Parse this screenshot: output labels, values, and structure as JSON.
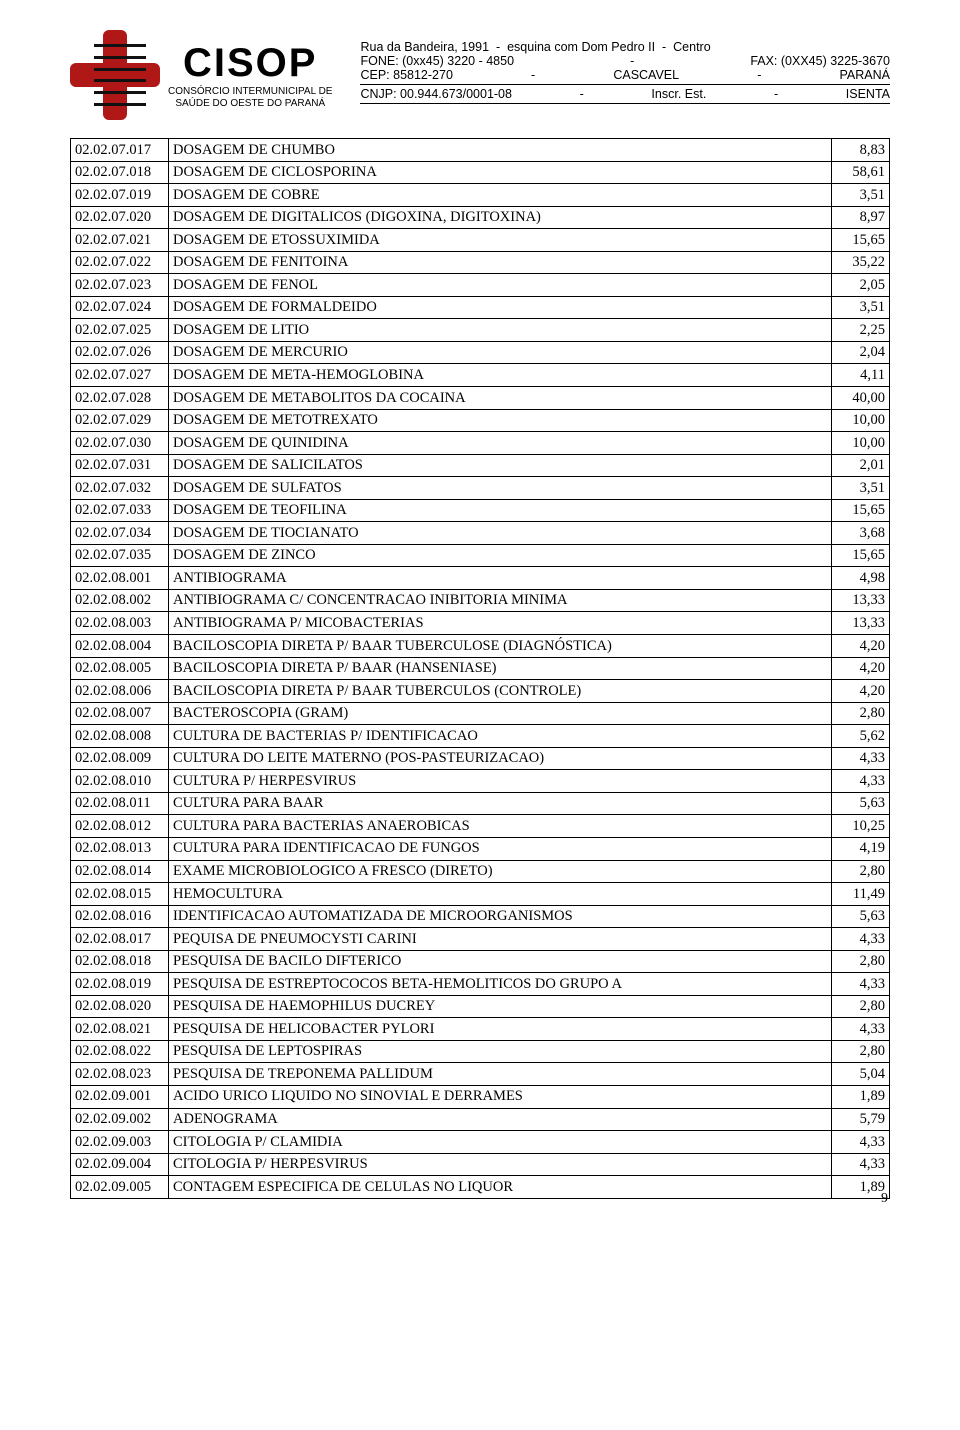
{
  "letterhead": {
    "brand_name": "CISOP",
    "brand_sub1": "CONSÓRCIO INTERMUNICIPAL DE",
    "brand_sub2": "SAÚDE DO OESTE DO PARANÁ",
    "addr1_left": "Rua da Bandeira, 1991  -  esquina com Dom Pedro II  -  Centro",
    "addr2_left": "FONE: (0xx45) 3220 - 4850",
    "addr2_right": "FAX: (0XX45) 3225-3670",
    "addr3_left": "CEP: 85812-270",
    "addr3_mid": "CASCAVEL",
    "addr3_right": "PARANÁ",
    "addr4_left": "CNJP: 00.944.673/0001-08",
    "addr4_mid": "Inscr. Est.",
    "addr4_right": "ISENTA"
  },
  "page_number": "9",
  "rows": [
    {
      "c": "02.02.07.017",
      "d": "DOSAGEM DE CHUMBO",
      "v": "8,83"
    },
    {
      "c": "02.02.07.018",
      "d": "DOSAGEM DE CICLOSPORINA",
      "v": "58,61"
    },
    {
      "c": "02.02.07.019",
      "d": "DOSAGEM DE COBRE",
      "v": "3,51"
    },
    {
      "c": "02.02.07.020",
      "d": "DOSAGEM DE DIGITALICOS (DIGOXINA, DIGITOXINA)",
      "v": "8,97"
    },
    {
      "c": "02.02.07.021",
      "d": "DOSAGEM DE ETOSSUXIMIDA",
      "v": "15,65"
    },
    {
      "c": "02.02.07.022",
      "d": "DOSAGEM DE FENITOINA",
      "v": "35,22"
    },
    {
      "c": "02.02.07.023",
      "d": "DOSAGEM DE FENOL",
      "v": "2,05"
    },
    {
      "c": "02.02.07.024",
      "d": "DOSAGEM DE FORMALDEIDO",
      "v": "3,51"
    },
    {
      "c": "02.02.07.025",
      "d": "DOSAGEM DE LITIO",
      "v": "2,25"
    },
    {
      "c": "02.02.07.026",
      "d": "DOSAGEM DE MERCURIO",
      "v": "2,04"
    },
    {
      "c": "02.02.07.027",
      "d": "DOSAGEM DE META-HEMOGLOBINA",
      "v": "4,11"
    },
    {
      "c": "02.02.07.028",
      "d": "DOSAGEM DE METABOLITOS DA COCAINA",
      "v": "40,00"
    },
    {
      "c": "02.02.07.029",
      "d": "DOSAGEM DE METOTREXATO",
      "v": "10,00"
    },
    {
      "c": "02.02.07.030",
      "d": "DOSAGEM DE QUINIDINA",
      "v": "10,00"
    },
    {
      "c": "02.02.07.031",
      "d": "DOSAGEM DE SALICILATOS",
      "v": "2,01"
    },
    {
      "c": "02.02.07.032",
      "d": "DOSAGEM DE SULFATOS",
      "v": "3,51"
    },
    {
      "c": "02.02.07.033",
      "d": "DOSAGEM DE TEOFILINA",
      "v": "15,65"
    },
    {
      "c": "02.02.07.034",
      "d": "DOSAGEM DE TIOCIANATO",
      "v": "3,68"
    },
    {
      "c": "02.02.07.035",
      "d": "DOSAGEM DE ZINCO",
      "v": "15,65"
    },
    {
      "c": "02.02.08.001",
      "d": "ANTIBIOGRAMA",
      "v": "4,98"
    },
    {
      "c": "02.02.08.002",
      "d": "ANTIBIOGRAMA C/ CONCENTRACAO INIBITORIA MINIMA",
      "v": "13,33"
    },
    {
      "c": "02.02.08.003",
      "d": "ANTIBIOGRAMA P/ MICOBACTERIAS",
      "v": "13,33"
    },
    {
      "c": "02.02.08.004",
      "d": "BACILOSCOPIA DIRETA P/ BAAR TUBERCULOSE (DIAGNÓSTICA)",
      "v": "4,20"
    },
    {
      "c": "02.02.08.005",
      "d": "BACILOSCOPIA DIRETA P/ BAAR (HANSENIASE)",
      "v": "4,20"
    },
    {
      "c": "02.02.08.006",
      "d": "BACILOSCOPIA DIRETA P/ BAAR TUBERCULOS (CONTROLE)",
      "v": "4,20"
    },
    {
      "c": "02.02.08.007",
      "d": "BACTEROSCOPIA (GRAM)",
      "v": "2,80"
    },
    {
      "c": "02.02.08.008",
      "d": "CULTURA DE BACTERIAS P/ IDENTIFICACAO",
      "v": "5,62"
    },
    {
      "c": "02.02.08.009",
      "d": "CULTURA DO LEITE MATERNO (POS-PASTEURIZACAO)",
      "v": "4,33"
    },
    {
      "c": "02.02.08.010",
      "d": "CULTURA P/ HERPESVIRUS",
      "v": "4,33"
    },
    {
      "c": "02.02.08.011",
      "d": "CULTURA PARA BAAR",
      "v": "5,63"
    },
    {
      "c": "02.02.08.012",
      "d": "CULTURA PARA BACTERIAS ANAEROBICAS",
      "v": "10,25"
    },
    {
      "c": "02.02.08.013",
      "d": "CULTURA PARA IDENTIFICACAO DE FUNGOS",
      "v": "4,19"
    },
    {
      "c": "02.02.08.014",
      "d": "EXAME MICROBIOLOGICO A FRESCO (DIRETO)",
      "v": "2,80"
    },
    {
      "c": "02.02.08.015",
      "d": "HEMOCULTURA",
      "v": "11,49"
    },
    {
      "c": "02.02.08.016",
      "d": "IDENTIFICACAO AUTOMATIZADA DE MICROORGANISMOS",
      "v": "5,63"
    },
    {
      "c": "02.02.08.017",
      "d": "PEQUISA DE PNEUMOCYSTI CARINI",
      "v": "4,33"
    },
    {
      "c": "02.02.08.018",
      "d": "PESQUISA DE BACILO DIFTERICO",
      "v": "2,80"
    },
    {
      "c": "02.02.08.019",
      "d": "PESQUISA DE ESTREPTOCOCOS BETA-HEMOLITICOS DO GRUPO A",
      "v": "4,33"
    },
    {
      "c": "02.02.08.020",
      "d": "PESQUISA DE HAEMOPHILUS DUCREY",
      "v": "2,80"
    },
    {
      "c": "02.02.08.021",
      "d": "PESQUISA DE HELICOBACTER PYLORI",
      "v": "4,33"
    },
    {
      "c": "02.02.08.022",
      "d": "PESQUISA DE LEPTOSPIRAS",
      "v": "2,80"
    },
    {
      "c": "02.02.08.023",
      "d": "PESQUISA DE TREPONEMA PALLIDUM",
      "v": "5,04"
    },
    {
      "c": "02.02.09.001",
      "d": "ACIDO URICO LIQUIDO NO SINOVIAL E DERRAMES",
      "v": "1,89"
    },
    {
      "c": "02.02.09.002",
      "d": "ADENOGRAMA",
      "v": "5,79"
    },
    {
      "c": "02.02.09.003",
      "d": "CITOLOGIA P/ CLAMIDIA",
      "v": "4,33"
    },
    {
      "c": "02.02.09.004",
      "d": "CITOLOGIA P/ HERPESVIRUS",
      "v": "4,33"
    },
    {
      "c": "02.02.09.005",
      "d": "CONTAGEM ESPECIFICA DE CELULAS NO LIQUOR",
      "v": "1,89"
    }
  ]
}
